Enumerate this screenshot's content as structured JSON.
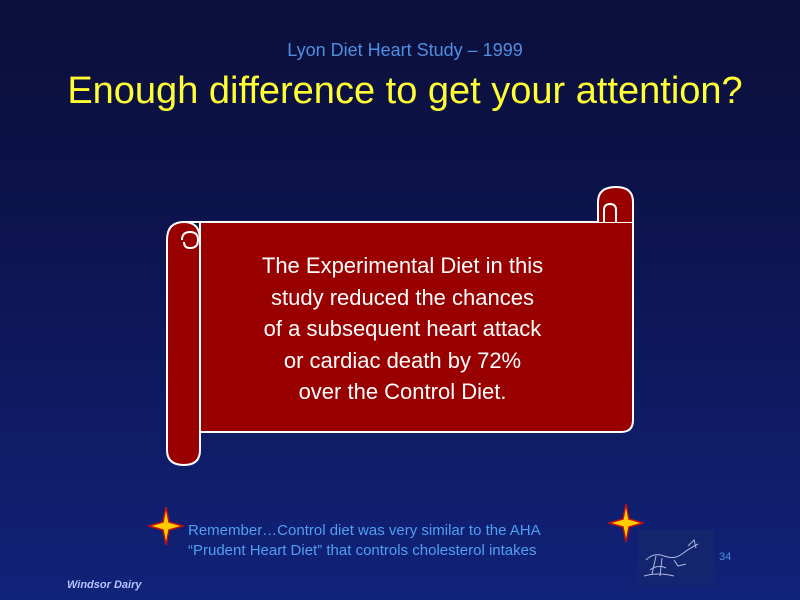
{
  "slide": {
    "subtitle": "Lyon Diet Heart Study – 1999",
    "title": "Enough difference to get your attention?",
    "scroll": {
      "lines": [
        "The Experimental Diet in this",
        "study reduced the chances",
        "of a subsequent heart attack",
        "or cardiac death by 72%",
        "over the Control Diet."
      ]
    },
    "note": {
      "lines": [
        "Remember…Control diet was very similar to the AHA",
        "“Prudent Heart Diet” that controls cholesterol intakes"
      ]
    },
    "page_number": "34",
    "footer": "Windsor Dairy",
    "icons": [
      "four-point-star-icon",
      "cow-drawing-logo"
    ]
  },
  "colors": {
    "background": "#0d1552",
    "title": "#ffff33",
    "subtitle": "#4f8fe0",
    "scroll_fill": "#990000",
    "scroll_stroke": "#ffffff",
    "scroll_text": "#ffffff",
    "note": "#4fa0f0",
    "star": "#ffcc00"
  }
}
